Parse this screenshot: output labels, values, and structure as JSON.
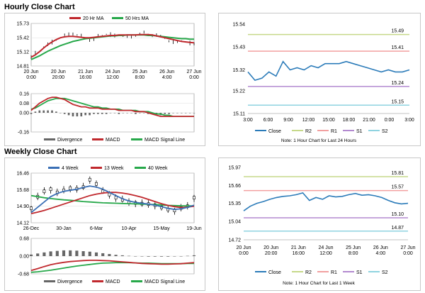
{
  "titles": {
    "hourly": "Hourly Close Chart",
    "weekly": "Weekly Close Chart"
  },
  "colors": {
    "ma_short": "#c0282d",
    "ma_long": "#27a84a",
    "ma_week4": "#3a6fb5",
    "price": "#000000",
    "close": "#2b7bb9",
    "r2": "#c6d98a",
    "r1": "#f2a0a0",
    "s1": "#b38ad0",
    "s2": "#8fd3e0",
    "divergence": "#666666",
    "macd": "#c0282d",
    "signal": "#27a84a",
    "grid": "#dddddd"
  },
  "chart_data": [
    {
      "id": "hourly_price",
      "type": "line",
      "title": "",
      "legend": [
        "20 Hr MA",
        "50 Hrs MA"
      ],
      "yticks": [
        "15.73",
        "15.42",
        "15.12",
        "14.81"
      ],
      "ylim": [
        14.81,
        15.73
      ],
      "xticks": [
        "20 Jun\n0:00",
        "20 Jun\n20:00",
        "21 Jun\n16:00",
        "24 Jun\n12:00",
        "25 Jun\n8:00",
        "26 Jun\n4:00",
        "27 Jun\n0:00"
      ],
      "series": [
        {
          "name": "Price",
          "values": [
            15.02,
            15.08,
            15.12,
            15.22,
            15.28,
            15.33,
            15.38,
            15.42,
            15.46,
            15.5,
            15.52,
            15.48,
            15.45,
            15.4,
            15.38,
            15.4,
            15.45,
            15.48,
            15.5,
            15.49,
            15.47,
            15.46,
            15.45,
            15.44,
            15.46,
            15.48,
            15.5,
            15.52,
            15.5,
            15.49,
            15.47,
            15.44,
            15.4,
            15.36,
            15.34,
            15.33,
            15.35,
            15.32,
            15.3,
            15.31
          ]
        },
        {
          "name": "20 Hr MA",
          "values": [
            15.0,
            15.05,
            15.12,
            15.2,
            15.27,
            15.33,
            15.38,
            15.42,
            15.44,
            15.45,
            15.45,
            15.44,
            15.43,
            15.42,
            15.42,
            15.43,
            15.44,
            15.45,
            15.46,
            15.47,
            15.47,
            15.48,
            15.48,
            15.48,
            15.48,
            15.48,
            15.49,
            15.49,
            15.49,
            15.48,
            15.46,
            15.44,
            15.42,
            15.4,
            15.38,
            15.36,
            15.34,
            15.33,
            15.32,
            15.31
          ]
        },
        {
          "name": "50 Hrs MA",
          "values": [
            14.95,
            14.99,
            15.03,
            15.08,
            15.13,
            15.17,
            15.21,
            15.25,
            15.28,
            15.31,
            15.34,
            15.36,
            15.38,
            15.4,
            15.41,
            15.42,
            15.43,
            15.44,
            15.45,
            15.46,
            15.46,
            15.47,
            15.47,
            15.48,
            15.48,
            15.48,
            15.48,
            15.48,
            15.47,
            15.47,
            15.46,
            15.45,
            15.44,
            15.43,
            15.42,
            15.41,
            15.4,
            15.4,
            15.39,
            15.39
          ]
        }
      ]
    },
    {
      "id": "hourly_macd",
      "type": "line",
      "legend": [
        "Divergence",
        "MACD",
        "MACD Signal Line"
      ],
      "yticks": [
        "0.16",
        "0.08",
        "0.00",
        "-0.08",
        "-0.16"
      ],
      "ylim": [
        -0.16,
        0.16
      ],
      "series": [
        {
          "name": "MACD",
          "values": [
            0.02,
            0.05,
            0.08,
            0.1,
            0.12,
            0.13,
            0.13,
            0.12,
            0.11,
            0.09,
            0.07,
            0.06,
            0.05,
            0.05,
            0.04,
            0.04,
            0.04,
            0.03,
            0.03,
            0.03,
            0.03,
            0.02,
            0.02,
            0.02,
            0.02,
            0.01,
            0.01,
            0.01,
            0.0,
            -0.01,
            -0.02,
            -0.03,
            -0.03,
            -0.03,
            -0.03,
            -0.03,
            -0.03,
            -0.03,
            -0.03,
            -0.03
          ]
        },
        {
          "name": "MACD Signal Line",
          "values": [
            0.03,
            0.04,
            0.06,
            0.08,
            0.1,
            0.11,
            0.12,
            0.12,
            0.12,
            0.11,
            0.1,
            0.09,
            0.08,
            0.07,
            0.06,
            0.05,
            0.05,
            0.04,
            0.04,
            0.03,
            0.03,
            0.03,
            0.02,
            0.02,
            0.02,
            0.02,
            0.01,
            0.01,
            0.01,
            0.0,
            -0.01,
            -0.01,
            -0.02,
            -0.02,
            -0.03,
            -0.03,
            -0.03,
            -0.03,
            -0.03,
            -0.03
          ]
        },
        {
          "name": "Divergence",
          "values": [
            -0.01,
            0.01,
            0.02,
            0.02,
            0.02,
            0.02,
            0.01,
            0.0,
            -0.01,
            -0.02,
            -0.03,
            -0.03,
            -0.03,
            -0.02,
            -0.02,
            -0.01,
            -0.01,
            -0.01,
            -0.01,
            0.0,
            0.0,
            -0.01,
            0.0,
            0.0,
            0.0,
            -0.01,
            0.0,
            0.0,
            -0.01,
            -0.01,
            -0.01,
            -0.02,
            -0.01,
            -0.01,
            0.0,
            0.0,
            0.0,
            0.0,
            0.0,
            0.0
          ]
        }
      ]
    },
    {
      "id": "hourly_close_levels",
      "type": "line",
      "yticks": [
        "15.54",
        "15.43",
        "15.32",
        "15.22",
        "15.11"
      ],
      "ylim": [
        15.11,
        15.54
      ],
      "xticks": [
        "3:00",
        "6:00",
        "9:00",
        "12:00",
        "15:00",
        "18:00",
        "21:00",
        "0:00",
        "3:00"
      ],
      "levels": [
        {
          "name": "R2",
          "value": 15.49,
          "label": "15.49"
        },
        {
          "name": "R1",
          "value": 15.41,
          "label": "15.41"
        },
        {
          "name": "S1",
          "value": 15.24,
          "label": "15.24"
        },
        {
          "name": "S2",
          "value": 15.15,
          "label": "15.15"
        }
      ],
      "series": [
        {
          "name": "Close",
          "values": [
            15.31,
            15.27,
            15.28,
            15.31,
            15.29,
            15.36,
            15.32,
            15.33,
            15.32,
            15.34,
            15.33,
            15.35,
            15.35,
            15.35,
            15.36,
            15.35,
            15.34,
            15.33,
            15.32,
            15.31,
            15.32,
            15.31,
            15.31,
            15.32
          ]
        }
      ],
      "legend": [
        "Close",
        "R2",
        "R1",
        "S1",
        "S2"
      ],
      "note": "Note: 1 Hour Chart for Last 24 Hours"
    },
    {
      "id": "weekly_price",
      "type": "line",
      "legend": [
        "4 Week",
        "13 Week",
        "40 Week"
      ],
      "yticks": [
        "16.46",
        "15.68",
        "14.90",
        "14.12"
      ],
      "ylim": [
        14.12,
        16.46
      ],
      "xticks": [
        "26-Dec",
        "30-Jan",
        "6-Mar",
        "10-Apr",
        "15-May",
        "19-Jun"
      ],
      "series": [
        {
          "name": "Price",
          "values": [
            14.8,
            15.35,
            15.6,
            15.7,
            15.55,
            15.65,
            15.75,
            15.72,
            15.8,
            16.15,
            15.95,
            15.6,
            15.45,
            15.3,
            15.2,
            15.1,
            15.05,
            15.02,
            15.0,
            14.95,
            14.85,
            14.75,
            14.7,
            14.82,
            14.9,
            15.3
          ]
        },
        {
          "name": "4 Week",
          "values": [
            14.6,
            14.85,
            15.1,
            15.35,
            15.5,
            15.6,
            15.65,
            15.7,
            15.78,
            15.85,
            15.8,
            15.7,
            15.55,
            15.4,
            15.25,
            15.15,
            15.08,
            15.04,
            15.0,
            14.95,
            14.88,
            14.8,
            14.75,
            14.78,
            14.85,
            14.95
          ]
        },
        {
          "name": "13 Week",
          "values": [
            14.55,
            14.62,
            14.7,
            14.8,
            14.9,
            15.0,
            15.1,
            15.2,
            15.3,
            15.4,
            15.47,
            15.52,
            15.55,
            15.55,
            15.52,
            15.47,
            15.4,
            15.32,
            15.22,
            15.12,
            15.02,
            14.94,
            14.88,
            14.84,
            14.86,
            14.9
          ]
        },
        {
          "name": "40 Week",
          "values": [
            15.4,
            15.35,
            15.3,
            15.26,
            15.23,
            15.2,
            15.18,
            15.15,
            15.12,
            15.1,
            15.08,
            15.06,
            15.05,
            15.04,
            15.03,
            15.02,
            15.01,
            15.0,
            14.99,
            14.98,
            14.96,
            14.94,
            14.93,
            14.92,
            14.92,
            14.92
          ]
        }
      ]
    },
    {
      "id": "weekly_macd",
      "type": "line",
      "legend": [
        "Divergence",
        "MACD",
        "MACD Signal Line"
      ],
      "yticks": [
        "0.68",
        "0.00",
        "-0.68"
      ],
      "ylim": [
        -0.68,
        0.68
      ],
      "series": [
        {
          "name": "MACD",
          "values": [
            -0.55,
            -0.48,
            -0.4,
            -0.33,
            -0.28,
            -0.24,
            -0.21,
            -0.19,
            -0.17,
            -0.16,
            -0.16,
            -0.17,
            -0.18,
            -0.2,
            -0.22,
            -0.24,
            -0.26,
            -0.28,
            -0.29,
            -0.3,
            -0.31,
            -0.31,
            -0.3,
            -0.29,
            -0.27,
            -0.25
          ]
        },
        {
          "name": "MACD Signal Line",
          "values": [
            -0.62,
            -0.6,
            -0.57,
            -0.54,
            -0.5,
            -0.46,
            -0.42,
            -0.38,
            -0.35,
            -0.32,
            -0.29,
            -0.27,
            -0.26,
            -0.25,
            -0.25,
            -0.25,
            -0.26,
            -0.27,
            -0.27,
            -0.28,
            -0.29,
            -0.29,
            -0.29,
            -0.29,
            -0.28,
            -0.28
          ]
        },
        {
          "name": "Divergence",
          "values": [
            0.06,
            0.1,
            0.14,
            0.18,
            0.2,
            0.22,
            0.22,
            0.21,
            0.19,
            0.17,
            0.14,
            0.11,
            0.08,
            0.05,
            0.03,
            0.01,
            0.0,
            -0.01,
            -0.02,
            -0.02,
            -0.02,
            -0.02,
            -0.01,
            0.0,
            0.01,
            0.03
          ]
        }
      ]
    },
    {
      "id": "weekly_close_levels",
      "type": "line",
      "yticks": [
        "15.97",
        "15.66",
        "15.35",
        "15.04",
        "14.72"
      ],
      "ylim": [
        14.72,
        15.97
      ],
      "xticks": [
        "20 Jun\n0:00",
        "20 Jun\n20:00",
        "21 Jun\n16:00",
        "24 Jun\n12:00",
        "25 Jun\n8:00",
        "26 Jun\n4:00",
        "27 Jun\n0:00"
      ],
      "levels": [
        {
          "name": "R2",
          "value": 15.81,
          "label": "15.81"
        },
        {
          "name": "R1",
          "value": 15.57,
          "label": "15.57"
        },
        {
          "name": "S1",
          "value": 15.1,
          "label": "15.10"
        },
        {
          "name": "S2",
          "value": 14.87,
          "label": "14.87"
        }
      ],
      "series": [
        {
          "name": "Close",
          "values": [
            15.22,
            15.3,
            15.35,
            15.38,
            15.42,
            15.45,
            15.47,
            15.48,
            15.5,
            15.53,
            15.4,
            15.45,
            15.42,
            15.48,
            15.46,
            15.47,
            15.5,
            15.52,
            15.49,
            15.5,
            15.48,
            15.45,
            15.4,
            15.36,
            15.34,
            15.35
          ]
        }
      ],
      "legend": [
        "Close",
        "R2",
        "R1",
        "S1",
        "S2"
      ],
      "note": "Note: 1 Hour Chart for Last 1 Week"
    }
  ]
}
